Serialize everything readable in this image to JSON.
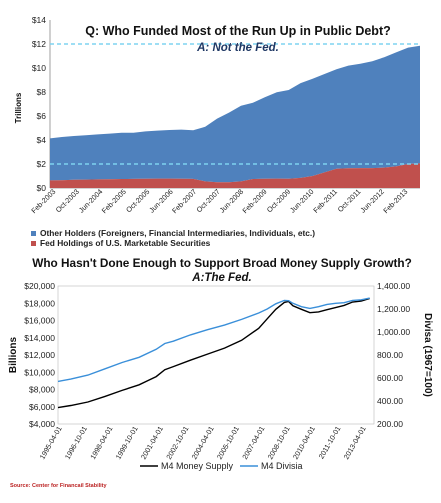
{
  "chart_data": [
    {
      "type": "area",
      "title": "Q: Who Funded Most of the Run Up in Public Debt?",
      "subtitle": "A: Not the Fed.",
      "ylabel": "Trillions",
      "ylim": [
        0,
        14
      ],
      "y_ticks": [
        "$0",
        "$2",
        "$4",
        "$6",
        "$8",
        "$10",
        "$12",
        "$14"
      ],
      "x_ticks": [
        "Feb-2003",
        "Oct-2003",
        "Jun-2004",
        "Feb-2005",
        "Oct-2005",
        "Jun-2006",
        "Feb-2007",
        "Oct-2007",
        "Jun-2008",
        "Feb-2009",
        "Oct-2009",
        "Jun-2010",
        "Feb-2011",
        "Oct-2011",
        "Jun-2012",
        "Feb-2013"
      ],
      "x_range": [
        "Feb-2003",
        "Oct-2013"
      ],
      "stacked": true,
      "reference_lines": [
        2,
        12
      ],
      "series": [
        {
          "name": "Fed Holdings of U.S. Marketable Securities",
          "color": "#c0504d",
          "values": [
            0.63,
            0.65,
            0.68,
            0.7,
            0.72,
            0.73,
            0.75,
            0.76,
            0.77,
            0.78,
            0.78,
            0.77,
            0.76,
            0.55,
            0.48,
            0.48,
            0.55,
            0.75,
            0.77,
            0.78,
            0.77,
            0.84,
            1.0,
            1.3,
            1.6,
            1.65,
            1.66,
            1.66,
            1.7,
            1.8,
            2.0,
            2.05
          ]
        },
        {
          "name": "Other Holders (Foreigners, Financial Intermediaries, Individuals, etc.)",
          "color": "#4f81bd",
          "values": [
            3.5,
            3.6,
            3.65,
            3.7,
            3.75,
            3.8,
            3.85,
            3.85,
            3.95,
            4.0,
            4.05,
            4.1,
            4.05,
            4.55,
            5.3,
            5.8,
            6.3,
            6.35,
            6.8,
            7.2,
            7.4,
            7.9,
            8.1,
            8.2,
            8.3,
            8.55,
            8.7,
            8.9,
            9.2,
            9.5,
            9.7,
            9.8
          ]
        }
      ],
      "legend_position": "bottom"
    },
    {
      "type": "line",
      "title": "Who Hasn't Done Enough to Support Broad Money Supply Growth?",
      "subtitle": "A:The Fed.",
      "ylabel": "Billions",
      "y2label": "Divisa (1967=100)",
      "ylim": [
        4000,
        20000
      ],
      "y2lim": [
        200,
        1400
      ],
      "y_ticks": [
        "$4,000",
        "$6,000",
        "$8,000",
        "$10,000",
        "$12,000",
        "$14,000",
        "$16,000",
        "$18,000",
        "$20,000"
      ],
      "y2_ticks": [
        "200.00",
        "400.00",
        "600.00",
        "800.00",
        "1,000.00",
        "1,200.00",
        "1,400.00"
      ],
      "x_ticks": [
        "1995-04-01",
        "1996-10-01",
        "1998-04-01",
        "1999-10-01",
        "2001-04-01",
        "2002-10-01",
        "2004-04-01",
        "2005-10-01",
        "2007-04-01",
        "2008-10-01",
        "2010-04-01",
        "2011-10-01",
        "2013-04-01"
      ],
      "x_range": [
        1995.25,
        2013.75
      ],
      "series": [
        {
          "name": "M4 Money Supply",
          "color": "#000000",
          "axis": "left",
          "x": [
            1995.25,
            1996,
            1997,
            1998,
            1999,
            2000,
            2001,
            2001.5,
            2002,
            2003,
            2004,
            2005,
            2006,
            2007,
            2007.5,
            2008,
            2008.5,
            2008.75,
            2009,
            2009.5,
            2010,
            2010.5,
            2011,
            2011.5,
            2012,
            2012.5,
            2013,
            2013.5
          ],
          "values": [
            5900,
            6150,
            6550,
            7200,
            7900,
            8550,
            9500,
            10300,
            10650,
            11400,
            12100,
            12800,
            13700,
            15100,
            16200,
            17300,
            18100,
            18200,
            17700,
            17300,
            16900,
            17000,
            17250,
            17500,
            17750,
            18150,
            18250,
            18550
          ]
        },
        {
          "name": "M4 Divisia",
          "color": "#3a8fd9",
          "axis": "right",
          "x": [
            1995.25,
            1996,
            1997,
            1998,
            1999,
            2000,
            2001,
            2001.5,
            2002,
            2003,
            2004,
            2005,
            2006,
            2007,
            2007.5,
            2008,
            2008.5,
            2008.75,
            2009,
            2009.5,
            2010,
            2010.5,
            2011,
            2011.5,
            2012,
            2012.5,
            2013,
            2013.5
          ],
          "values": [
            570,
            590,
            625,
            680,
            735,
            780,
            850,
            900,
            920,
            975,
            1020,
            1060,
            1110,
            1165,
            1200,
            1245,
            1275,
            1272,
            1250,
            1220,
            1205,
            1220,
            1240,
            1250,
            1255,
            1275,
            1280,
            1295
          ]
        }
      ],
      "legend_position": "bottom"
    }
  ],
  "source": "Source: Center for Financail Stability"
}
